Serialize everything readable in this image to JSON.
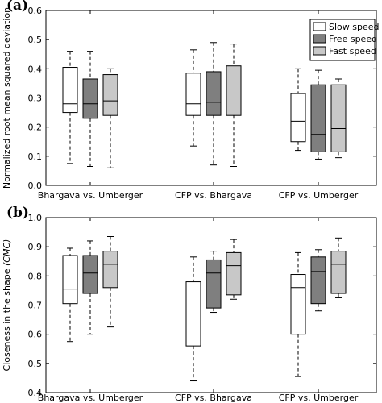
{
  "chart_data": [
    {
      "type": "box",
      "panel_label": "(a)",
      "ylabel": "Normalized root mean squared deviation",
      "ylim": [
        0,
        0.6
      ],
      "yticks": [
        0.0,
        0.1,
        0.2,
        0.3,
        0.4,
        0.5,
        0.6
      ],
      "reference_line": 0.3,
      "categories": [
        "Bhargava vs. Umberger",
        "CFP vs. Bhargava",
        "CFP vs. Umberger"
      ],
      "legend": {
        "position": "top-right",
        "entries": [
          "Slow speed",
          "Free speed",
          "Fast speed"
        ]
      },
      "series": [
        {
          "name": "Slow speed",
          "color": "#ffffff",
          "boxes": [
            {
              "whislo": 0.075,
              "q1": 0.25,
              "med": 0.28,
              "q3": 0.405,
              "whishi": 0.46
            },
            {
              "whislo": 0.135,
              "q1": 0.24,
              "med": 0.28,
              "q3": 0.385,
              "whishi": 0.465
            },
            {
              "whislo": 0.12,
              "q1": 0.15,
              "med": 0.22,
              "q3": 0.315,
              "whishi": 0.4
            }
          ]
        },
        {
          "name": "Free speed",
          "color": "#7f7f7f",
          "boxes": [
            {
              "whislo": 0.065,
              "q1": 0.23,
              "med": 0.28,
              "q3": 0.365,
              "whishi": 0.46
            },
            {
              "whislo": 0.07,
              "q1": 0.24,
              "med": 0.285,
              "q3": 0.39,
              "whishi": 0.49
            },
            {
              "whislo": 0.09,
              "q1": 0.115,
              "med": 0.175,
              "q3": 0.345,
              "whishi": 0.395
            }
          ]
        },
        {
          "name": "Fast speed",
          "color": "#c8c8c8",
          "boxes": [
            {
              "whislo": 0.06,
              "q1": 0.24,
              "med": 0.29,
              "q3": 0.38,
              "whishi": 0.4
            },
            {
              "whislo": 0.065,
              "q1": 0.24,
              "med": 0.3,
              "q3": 0.41,
              "whishi": 0.485
            },
            {
              "whislo": 0.095,
              "q1": 0.115,
              "med": 0.195,
              "q3": 0.345,
              "whishi": 0.365
            }
          ]
        }
      ]
    },
    {
      "type": "box",
      "panel_label": "(b)",
      "ylabel_prefix": "Closeness in the shape ",
      "ylabel_italic": "(CMC)",
      "ylim": [
        0.4,
        1.0
      ],
      "yticks": [
        0.4,
        0.5,
        0.6,
        0.7,
        0.8,
        0.9,
        1.0
      ],
      "reference_line": 0.7,
      "categories": [
        "Bhargava vs. Umberger",
        "CFP vs. Bhargava",
        "CFP vs. Umberger"
      ],
      "series": [
        {
          "name": "Slow speed",
          "color": "#ffffff",
          "boxes": [
            {
              "whislo": 0.575,
              "q1": 0.705,
              "med": 0.755,
              "q3": 0.87,
              "whishi": 0.895
            },
            {
              "whislo": 0.44,
              "q1": 0.56,
              "med": 0.7,
              "q3": 0.78,
              "whishi": 0.865
            },
            {
              "whislo": 0.455,
              "q1": 0.6,
              "med": 0.76,
              "q3": 0.805,
              "whishi": 0.88
            }
          ]
        },
        {
          "name": "Free speed",
          "color": "#7f7f7f",
          "boxes": [
            {
              "whislo": 0.6,
              "q1": 0.74,
              "med": 0.81,
              "q3": 0.87,
              "whishi": 0.92
            },
            {
              "whislo": 0.675,
              "q1": 0.69,
              "med": 0.81,
              "q3": 0.855,
              "whishi": 0.885
            },
            {
              "whislo": 0.68,
              "q1": 0.705,
              "med": 0.815,
              "q3": 0.865,
              "whishi": 0.89
            }
          ]
        },
        {
          "name": "Fast speed",
          "color": "#c8c8c8",
          "boxes": [
            {
              "whislo": 0.625,
              "q1": 0.76,
              "med": 0.84,
              "q3": 0.885,
              "whishi": 0.935
            },
            {
              "whislo": 0.72,
              "q1": 0.735,
              "med": 0.835,
              "q3": 0.88,
              "whishi": 0.925
            },
            {
              "whislo": 0.725,
              "q1": 0.74,
              "med": 0.84,
              "q3": 0.885,
              "whishi": 0.93
            }
          ]
        }
      ]
    }
  ]
}
